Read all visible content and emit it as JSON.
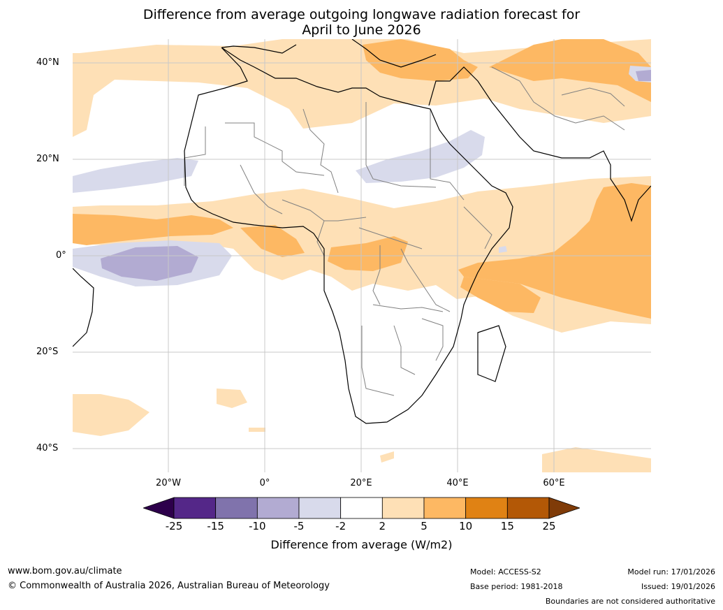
{
  "title": {
    "line1": "Difference from average outgoing longwave radiation forecast for",
    "line2": "April to June 2026"
  },
  "lat_labels": [
    "40°N",
    "20°N",
    "0°",
    "20°S",
    "40°S"
  ],
  "lon_labels": [
    "20°W",
    "0°",
    "20°E",
    "40°E",
    "60°E"
  ],
  "colorbar": {
    "ticks": [
      "-25",
      "-15",
      "-10",
      "-5",
      "-2",
      "2",
      "5",
      "10",
      "15",
      "25"
    ],
    "colors": [
      "#2d004b",
      "#542788",
      "#8073ac",
      "#b2abd2",
      "#d8daeb",
      "#ffffff",
      "#fee0b6",
      "#fdb863",
      "#e08214",
      "#b35806",
      "#7f3b08"
    ],
    "label": "Difference from average (W/m2)"
  },
  "footer": {
    "url": "www.bom.gov.au/climate",
    "copyright": "© Commonwealth of Australia 2026, Australian Bureau of Meteorology",
    "model": "Model: ACCESS-S2",
    "base_period": "Base period: 1981-2018",
    "model_run": "Model run: 17/01/2026",
    "issued": "Issued: 19/01/2026",
    "disclaimer": "Boundaries are not considered authoritative"
  },
  "palette": {
    "light_orange": "#fee0b6",
    "mid_orange": "#fdb863",
    "light_purple": "#d8daeb",
    "mid_purple": "#b2abd2",
    "grid": "#c8c8c8",
    "border": "#808080",
    "coast": "#000000"
  }
}
